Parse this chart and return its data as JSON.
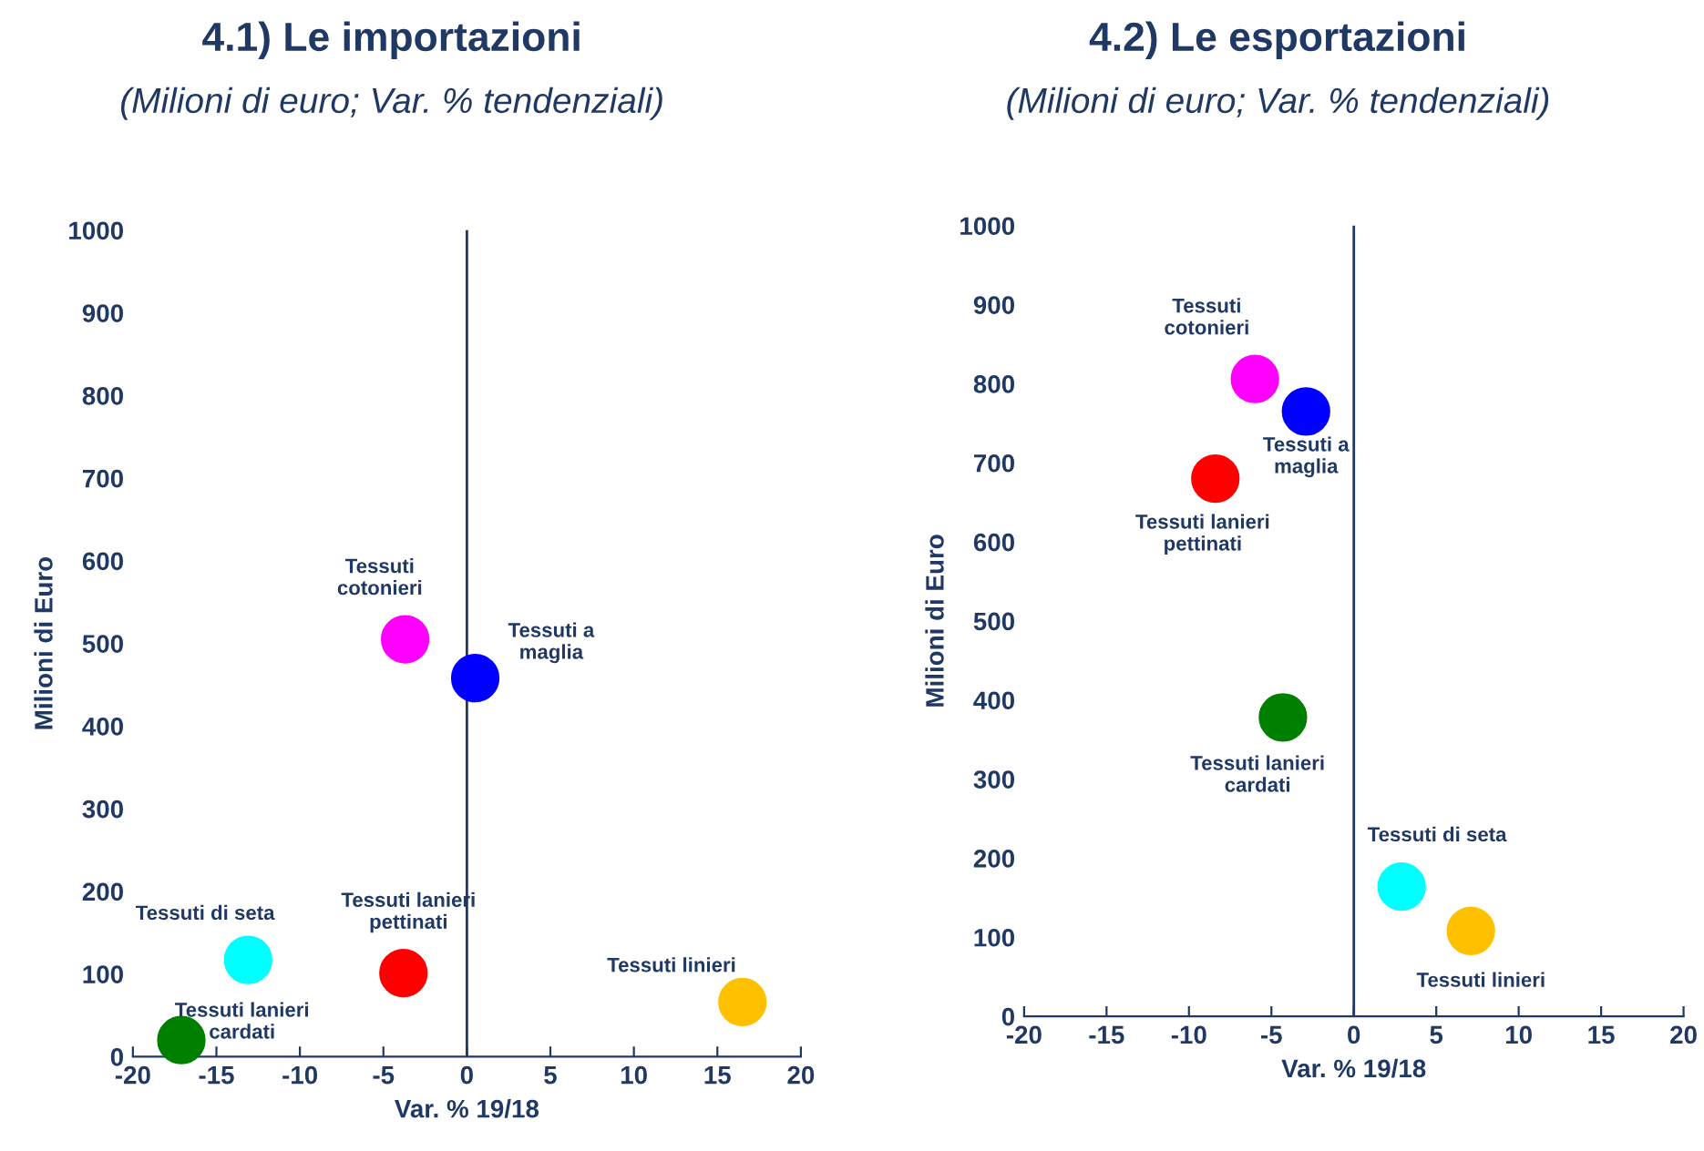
{
  "chart_data": [
    {
      "type": "scatter",
      "title": "4.1) Le importazioni",
      "subtitle": "(Milioni di euro; Var. % tendenziali)",
      "xlabel": "Var. % 19/18",
      "ylabel": "Milioni di Euro",
      "xlim": [
        -20,
        20
      ],
      "ylim": [
        0,
        1000
      ],
      "xticks": [
        -20,
        -15,
        -10,
        -5,
        0,
        5,
        10,
        15,
        20
      ],
      "yticks": [
        0,
        100,
        200,
        300,
        400,
        500,
        600,
        700,
        800,
        900,
        1000
      ],
      "grid": false,
      "legend": false,
      "marker": "circle",
      "ref_lines": [
        {
          "axis": "x",
          "value": 0
        }
      ],
      "series": [
        {
          "name": "Tessuti cotonieri",
          "color": "#ff00ff",
          "x": [
            -3.7
          ],
          "values": [
            505
          ]
        },
        {
          "name": "Tessuti a maglia",
          "color": "#0000ff",
          "x": [
            0.5
          ],
          "values": [
            458
          ]
        },
        {
          "name": "Tessuti di seta",
          "color": "#00ffff",
          "x": [
            -13.1
          ],
          "values": [
            117
          ]
        },
        {
          "name": "Tessuti lanieri pettinati",
          "color": "#ff0000",
          "x": [
            -3.8
          ],
          "values": [
            101
          ]
        },
        {
          "name": "Tessuti lanieri cardati",
          "color": "#008000",
          "x": [
            -17.1
          ],
          "values": [
            20
          ]
        },
        {
          "name": "Tessuti linieri",
          "color": "#ffc000",
          "x": [
            16.5
          ],
          "values": [
            66
          ]
        }
      ]
    },
    {
      "type": "scatter",
      "title": "4.2) Le esportazioni",
      "subtitle": "(Milioni di euro; Var. % tendenziali)",
      "xlabel": "Var. % 19/18",
      "ylabel": "Milioni di Euro",
      "xlim": [
        -20,
        20
      ],
      "ylim": [
        0,
        1000
      ],
      "xticks": [
        -20,
        -15,
        -10,
        -5,
        0,
        5,
        10,
        15,
        20
      ],
      "yticks": [
        0,
        100,
        200,
        300,
        400,
        500,
        600,
        700,
        800,
        900,
        1000
      ],
      "grid": false,
      "legend": false,
      "marker": "circle",
      "ref_lines": [
        {
          "axis": "x",
          "value": 0
        }
      ],
      "series": [
        {
          "name": "Tessuti cotonieri",
          "color": "#ff00ff",
          "x": [
            -6.0
          ],
          "values": [
            806
          ]
        },
        {
          "name": "Tessuti a maglia",
          "color": "#0000ff",
          "x": [
            -2.9
          ],
          "values": [
            765
          ]
        },
        {
          "name": "Tessuti lanieri pettinati",
          "color": "#ff0000",
          "x": [
            -8.4
          ],
          "values": [
            680
          ]
        },
        {
          "name": "Tessuti lanieri cardati",
          "color": "#008000",
          "x": [
            -4.3
          ],
          "values": [
            378
          ]
        },
        {
          "name": "Tessuti di seta",
          "color": "#00ffff",
          "x": [
            2.9
          ],
          "values": [
            164
          ]
        },
        {
          "name": "Tessuti linieri",
          "color": "#ffc000",
          "x": [
            7.1
          ],
          "values": [
            108
          ]
        }
      ]
    }
  ]
}
